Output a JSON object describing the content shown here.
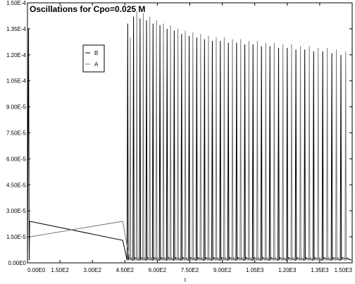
{
  "chart_data": {
    "type": "line",
    "title": "Oscillations for Cpo=0.025 M",
    "xlabel": "t",
    "ylabel": "",
    "xlim": [
      0,
      1500
    ],
    "ylim": [
      0,
      0.00015
    ],
    "x_ticks": [
      0,
      150,
      300,
      450,
      600,
      750,
      900,
      1050,
      1200,
      1350,
      1500
    ],
    "x_tick_labels": [
      "0.00E0",
      "1.50E2",
      "3.00E2",
      "4.50E2",
      "6.00E2",
      "7.50E2",
      "9.00E2",
      "1.05E3",
      "1.20E3",
      "1.35E3",
      "1.50E3"
    ],
    "y_ticks": [
      0,
      1.5e-05,
      3e-05,
      4.5e-05,
      6e-05,
      7.5e-05,
      9e-05,
      0.000105,
      0.00012,
      0.000135,
      0.00015
    ],
    "y_tick_labels": [
      "0.00E0",
      "1.50E-5",
      "3.00E-5",
      "4.50E-5",
      "6.00E-5",
      "7.50E-5",
      "9.00E-5",
      "1.05E-4",
      "1.20E-4",
      "1.35E-4",
      "1.50E-4"
    ],
    "grid": false,
    "legend_position": "top-left",
    "series": [
      {
        "name": "B",
        "color": "#000000",
        "initial_spike": {
          "x": 5,
          "y": 0.000135
        },
        "drift": {
          "x_start": 10,
          "x_end": 440,
          "y_start": 2.4e-05,
          "y_end": 1.3e-05
        },
        "oscillation_peaks": [
          {
            "x": 463,
            "y": 0.000138
          },
          {
            "x": 490,
            "y": 0.000142
          },
          {
            "x": 520,
            "y": 0.000141
          },
          {
            "x": 550,
            "y": 0.00014
          },
          {
            "x": 580,
            "y": 0.000138
          },
          {
            "x": 612,
            "y": 0.000137
          },
          {
            "x": 645,
            "y": 0.000135
          },
          {
            "x": 678,
            "y": 0.000134
          },
          {
            "x": 712,
            "y": 0.000132
          },
          {
            "x": 747,
            "y": 0.000131
          },
          {
            "x": 782,
            "y": 0.00013
          },
          {
            "x": 818,
            "y": 0.000129
          },
          {
            "x": 854,
            "y": 0.000128
          },
          {
            "x": 891,
            "y": 0.000128
          },
          {
            "x": 928,
            "y": 0.000127
          },
          {
            "x": 966,
            "y": 0.000127
          },
          {
            "x": 1004,
            "y": 0.000126
          },
          {
            "x": 1042,
            "y": 0.000126
          },
          {
            "x": 1081,
            "y": 0.000125
          },
          {
            "x": 1120,
            "y": 0.000125
          },
          {
            "x": 1160,
            "y": 0.000124
          },
          {
            "x": 1200,
            "y": 0.000124
          },
          {
            "x": 1240,
            "y": 0.000123
          },
          {
            "x": 1281,
            "y": 0.000123
          },
          {
            "x": 1322,
            "y": 0.000122
          },
          {
            "x": 1364,
            "y": 0.000122
          },
          {
            "x": 1406,
            "y": 0.000121
          },
          {
            "x": 1448,
            "y": 0.00012
          }
        ]
      },
      {
        "name": "A",
        "color": "#777777",
        "drift": {
          "x_start": 10,
          "x_end": 440,
          "y_start": 1.5e-05,
          "y_end": 2.4e-05
        },
        "oscillation_peaks": [
          {
            "x": 475,
            "y": 0.00013
          },
          {
            "x": 505,
            "y": 0.000145
          },
          {
            "x": 535,
            "y": 0.000144
          },
          {
            "x": 565,
            "y": 0.000142
          },
          {
            "x": 596,
            "y": 0.00014
          },
          {
            "x": 628,
            "y": 0.000138
          },
          {
            "x": 661,
            "y": 0.000137
          },
          {
            "x": 695,
            "y": 0.000135
          },
          {
            "x": 729,
            "y": 0.000134
          },
          {
            "x": 764,
            "y": 0.000133
          },
          {
            "x": 800,
            "y": 0.000132
          },
          {
            "x": 836,
            "y": 0.000131
          },
          {
            "x": 872,
            "y": 0.00013
          },
          {
            "x": 909,
            "y": 0.00013
          },
          {
            "x": 947,
            "y": 0.000129
          },
          {
            "x": 985,
            "y": 0.000129
          },
          {
            "x": 1023,
            "y": 0.000128
          },
          {
            "x": 1062,
            "y": 0.000128
          },
          {
            "x": 1101,
            "y": 0.000127
          },
          {
            "x": 1140,
            "y": 0.000127
          },
          {
            "x": 1180,
            "y": 0.000126
          },
          {
            "x": 1220,
            "y": 0.000126
          },
          {
            "x": 1261,
            "y": 0.000125
          },
          {
            "x": 1302,
            "y": 0.000125
          },
          {
            "x": 1343,
            "y": 0.000124
          },
          {
            "x": 1385,
            "y": 0.000124
          },
          {
            "x": 1427,
            "y": 0.000123
          },
          {
            "x": 1470,
            "y": 0.000122
          }
        ]
      }
    ],
    "trough_value": 1.5e-06
  }
}
